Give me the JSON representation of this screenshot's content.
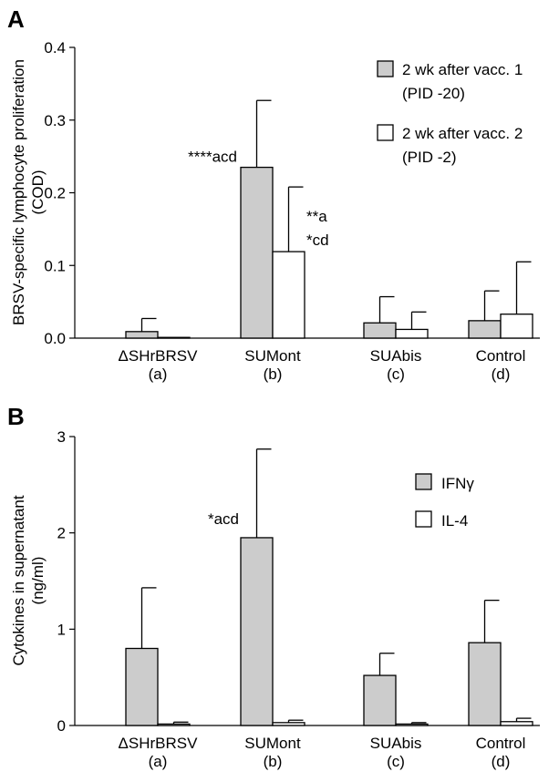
{
  "colors": {
    "gray": "#cccccc",
    "white": "#ffffff",
    "stroke": "#000000"
  },
  "chart_data": [
    {
      "panel_label": "A",
      "type": "bar",
      "ylabel_line1": "BRSV-specific lymphocyte proliferation",
      "ylabel_line2": "(COD)",
      "ylim": [
        0,
        0.4
      ],
      "yticks": [
        0,
        0.1,
        0.2,
        0.3,
        0.4
      ],
      "ytick_labels": [
        "0.0",
        "0.1",
        "0.2",
        "0.3",
        "0.4"
      ],
      "categories": [
        "ΔSHrBRSV",
        "SUMont",
        "SUAbis",
        "Control"
      ],
      "category_sub": [
        "(a)",
        "(b)",
        "(c)",
        "(d)"
      ],
      "series": [
        {
          "name": "2 wk after vacc. 1",
          "name2": "(PID -20)",
          "color": "#cccccc",
          "values": [
            0.009,
            0.235,
            0.021,
            0.024
          ],
          "errors": [
            0.018,
            0.092,
            0.036,
            0.041
          ]
        },
        {
          "name": "2 wk after vacc. 2",
          "name2": "(PID -2)",
          "color": "#ffffff",
          "values": [
            0.001,
            0.119,
            0.012,
            0.033
          ],
          "errors": [
            0.0,
            0.089,
            0.024,
            0.072
          ]
        }
      ],
      "annotations": [
        {
          "text": "****acd",
          "cat": 1,
          "series": 0
        },
        {
          "text": "**a",
          "cat": 1,
          "series": 1,
          "line": 0
        },
        {
          "text": "*cd",
          "cat": 1,
          "series": 1,
          "line": 1
        }
      ],
      "legend_position": "top-right",
      "grid": false
    },
    {
      "panel_label": "B",
      "type": "bar",
      "ylabel_line1": "Cytokines in supernatant",
      "ylabel_line2": "(ng/ml)",
      "ylim": [
        0,
        3
      ],
      "yticks": [
        0,
        1,
        2,
        3
      ],
      "ytick_labels": [
        "0",
        "1",
        "2",
        "3"
      ],
      "categories": [
        "ΔSHrBRSV",
        "SUMont",
        "SUAbis",
        "Control"
      ],
      "category_sub": [
        "(a)",
        "(b)",
        "(c)",
        "(d)"
      ],
      "series": [
        {
          "name": "IFNγ",
          "name2": "",
          "color": "#cccccc",
          "values": [
            0.8,
            1.95,
            0.52,
            0.86
          ],
          "errors": [
            0.63,
            0.92,
            0.23,
            0.44
          ]
        },
        {
          "name": "IL-4",
          "name2": "",
          "color": "#ffffff",
          "values": [
            0.015,
            0.03,
            0.015,
            0.04
          ],
          "errors": [
            0.02,
            0.025,
            0.015,
            0.035
          ]
        }
      ],
      "annotations": [
        {
          "text": "*acd",
          "cat": 1,
          "series": 0
        }
      ],
      "legend_position": "right",
      "grid": false
    }
  ]
}
